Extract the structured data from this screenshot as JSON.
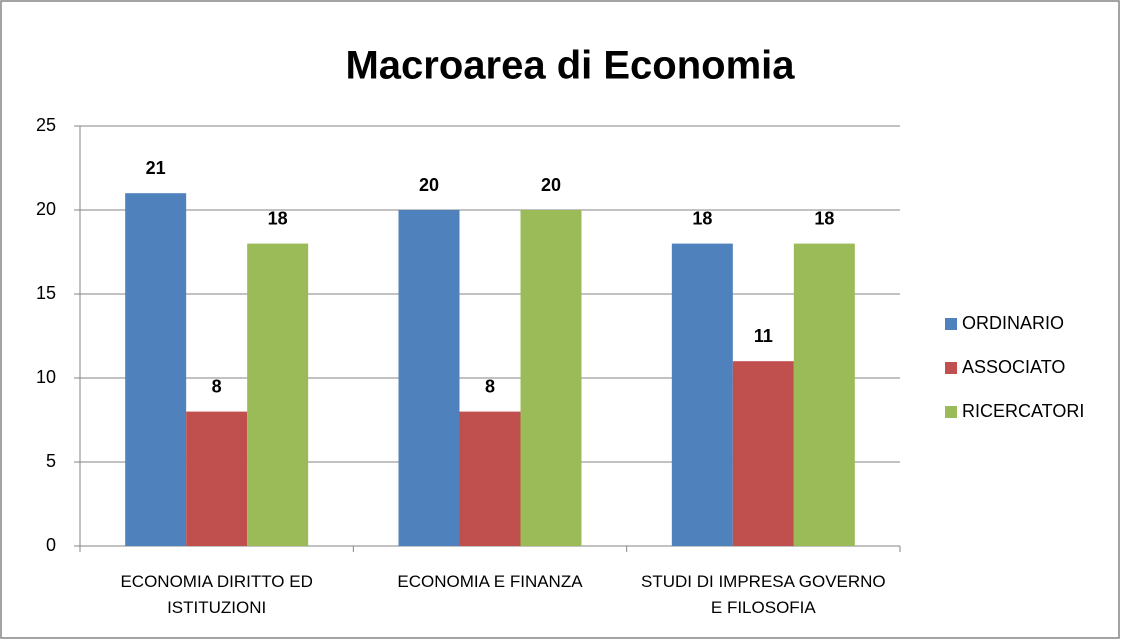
{
  "chart_data": {
    "type": "bar",
    "title": "Macroarea di Economia",
    "categories": [
      "ECONOMIA DIRITTO ED ISTITUZIONI",
      "ECONOMIA E FINANZA",
      "STUDI DI IMPRESA GOVERNO E FILOSOFIA"
    ],
    "series": [
      {
        "name": "ORDINARIO",
        "color": "#4f81bd",
        "values": [
          21,
          20,
          18
        ]
      },
      {
        "name": "ASSOCIATO",
        "color": "#c0504d",
        "values": [
          8,
          8,
          11
        ]
      },
      {
        "name": "RICERCATORI",
        "color": "#9bbb59",
        "values": [
          18,
          20,
          18
        ]
      }
    ],
    "ylim": [
      0,
      25
    ],
    "yticks": [
      0,
      5,
      10,
      15,
      20,
      25
    ],
    "grid": true,
    "legend": "right"
  }
}
